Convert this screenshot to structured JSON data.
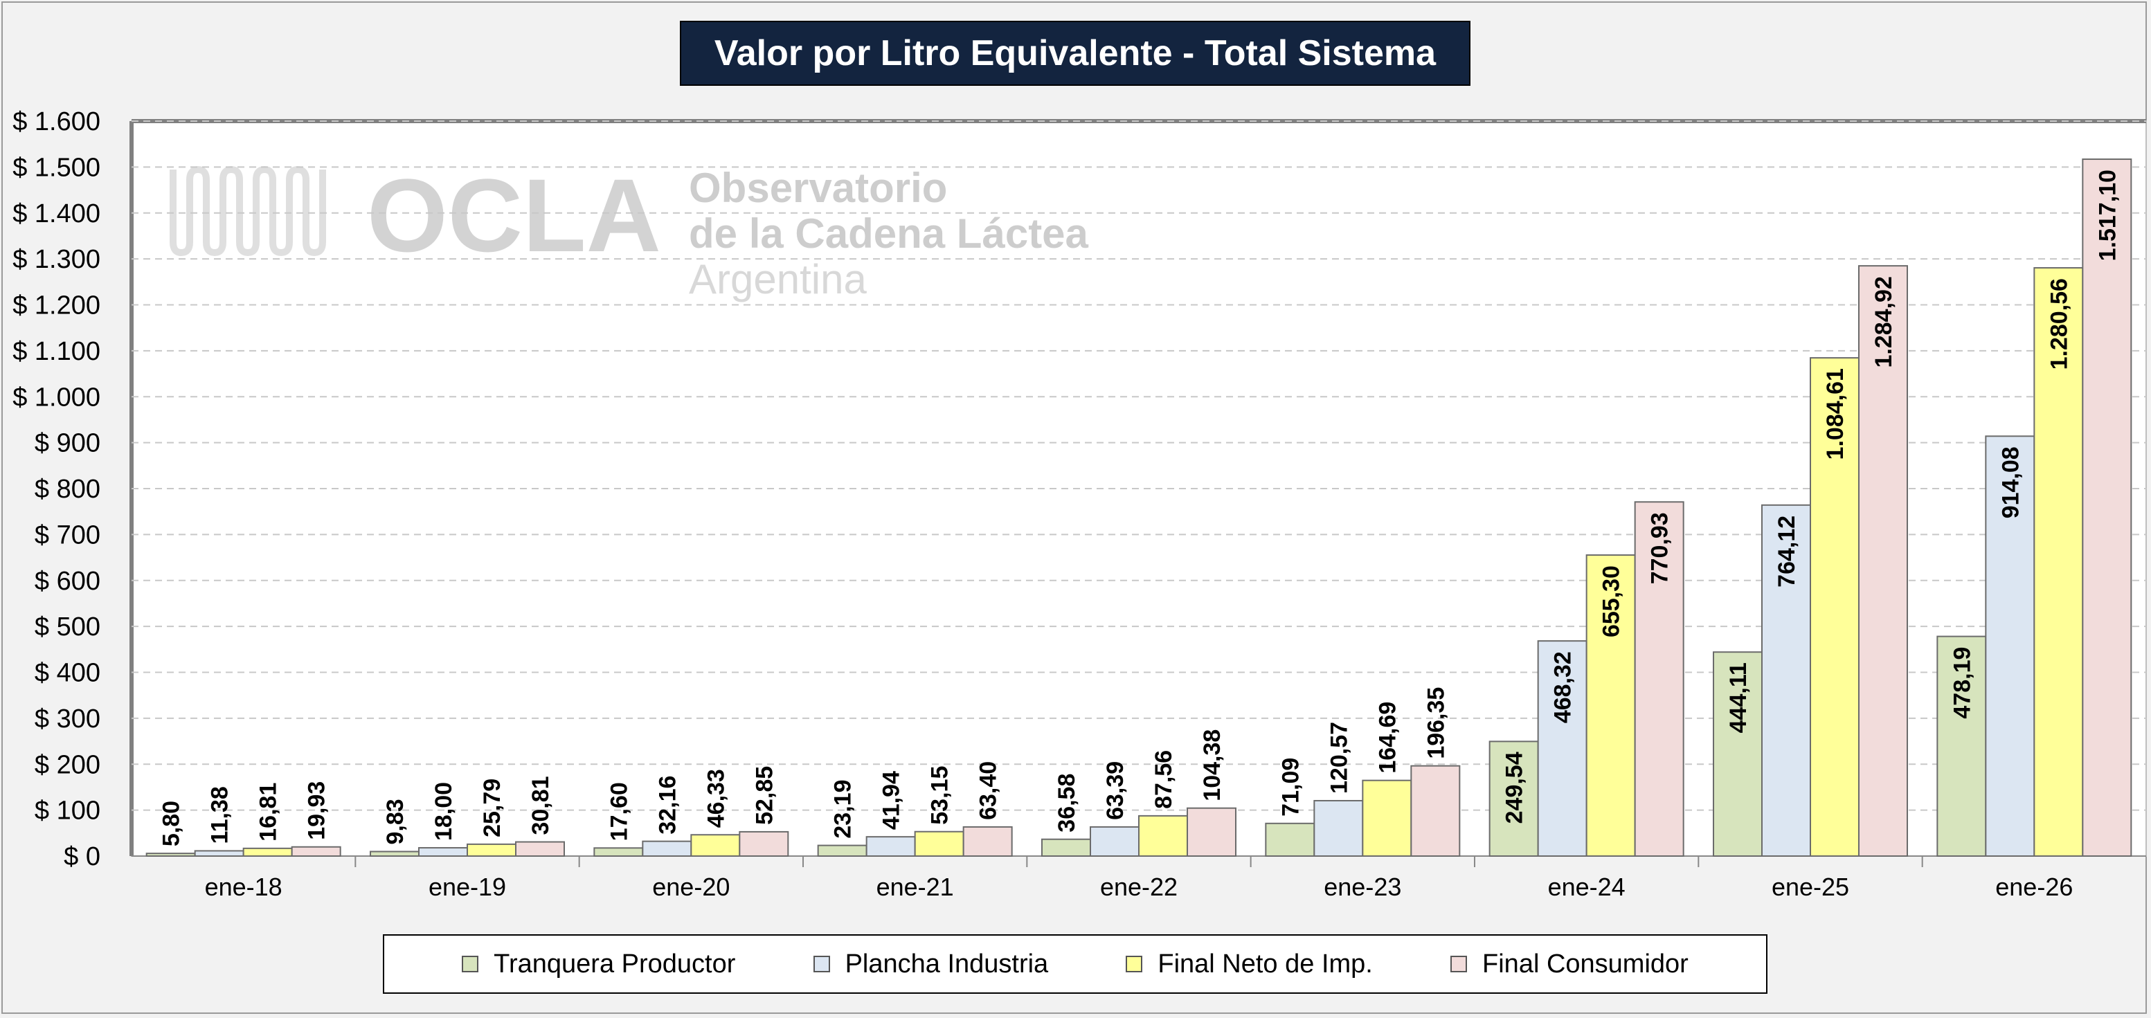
{
  "chart_data": {
    "type": "bar",
    "title": "Valor por Litro Equivalente - Total Sistema",
    "xlabel": "",
    "ylabel": "",
    "categories": [
      "ene-18",
      "ene-19",
      "ene-20",
      "ene-21",
      "ene-22",
      "ene-23",
      "ene-24",
      "ene-25",
      "ene-26"
    ],
    "ylim": [
      0,
      1600
    ],
    "yticks": [
      0,
      100,
      200,
      300,
      400,
      500,
      600,
      700,
      800,
      900,
      1000,
      1100,
      1200,
      1300,
      1400,
      1500,
      1600
    ],
    "ytick_labels": [
      "$ 0",
      "$ 100",
      "$ 200",
      "$ 300",
      "$ 400",
      "$ 500",
      "$ 600",
      "$ 700",
      "$ 800",
      "$ 900",
      "$ 1.000",
      "$ 1.100",
      "$ 1.200",
      "$ 1.300",
      "$ 1.400",
      "$ 1.500",
      "$ 1.600"
    ],
    "grid": true,
    "legend_position": "bottom",
    "series": [
      {
        "name": "Tranquera Productor",
        "color": "#d7e4bd",
        "values": [
          5.8,
          9.83,
          17.6,
          23.19,
          36.58,
          71.09,
          249.54,
          444.11,
          478.19
        ],
        "labels": [
          "5,80",
          "9,83",
          "17,60",
          "23,19",
          "36,58",
          "71,09",
          "249,54",
          "444,11",
          "478,19"
        ]
      },
      {
        "name": "Plancha Industria",
        "color": "#dce6f2",
        "values": [
          11.38,
          18.0,
          32.16,
          41.94,
          63.39,
          120.57,
          468.32,
          764.12,
          914.08
        ],
        "labels": [
          "11,38",
          "18,00",
          "32,16",
          "41,94",
          "63,39",
          "120,57",
          "468,32",
          "764,12",
          "914,08"
        ]
      },
      {
        "name": "Final Neto de Imp.",
        "color": "#ffff99",
        "values": [
          16.81,
          25.79,
          46.33,
          53.15,
          87.56,
          164.69,
          655.3,
          1084.61,
          1280.56
        ],
        "labels": [
          "16,81",
          "25,79",
          "46,33",
          "53,15",
          "87,56",
          "164,69",
          "655,30",
          "1.084,61",
          "1.280,56"
        ]
      },
      {
        "name": "Final Consumidor",
        "color": "#f2dcdb",
        "values": [
          19.93,
          30.81,
          52.85,
          63.4,
          104.38,
          196.35,
          770.93,
          1284.92,
          1517.1
        ],
        "labels": [
          "19,93",
          "30,81",
          "52,85",
          "63,40",
          "104,38",
          "196,35",
          "770,93",
          "1.284,92",
          "1.517,10"
        ]
      }
    ]
  },
  "watermark": {
    "logo": "OCLA",
    "line1": "Observatorio",
    "line2": "de la Cadena Láctea",
    "line3": "Argentina"
  }
}
